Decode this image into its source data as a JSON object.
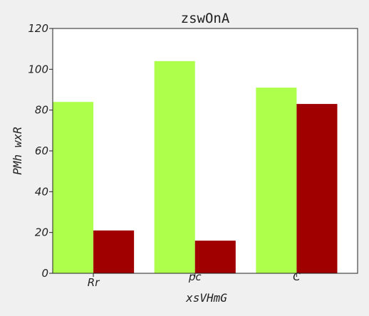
{
  "chart_data": {
    "type": "bar",
    "title": "zswOnA",
    "xlabel": "xsVHmG",
    "ylabel": "PMh wxR",
    "categories": [
      "Rr",
      "pc",
      "C"
    ],
    "category_label_sizes": [
      "normal",
      "tiny",
      "tiny"
    ],
    "series": [
      {
        "color": "#adff4b",
        "values": [
          84,
          104,
          91
        ]
      },
      {
        "color": "#a00000",
        "values": [
          21,
          16,
          83
        ]
      }
    ],
    "ylim": [
      0,
      120
    ],
    "yticks": [
      0,
      20,
      40,
      60,
      80,
      100,
      120
    ],
    "grid": false,
    "legend": "none"
  }
}
